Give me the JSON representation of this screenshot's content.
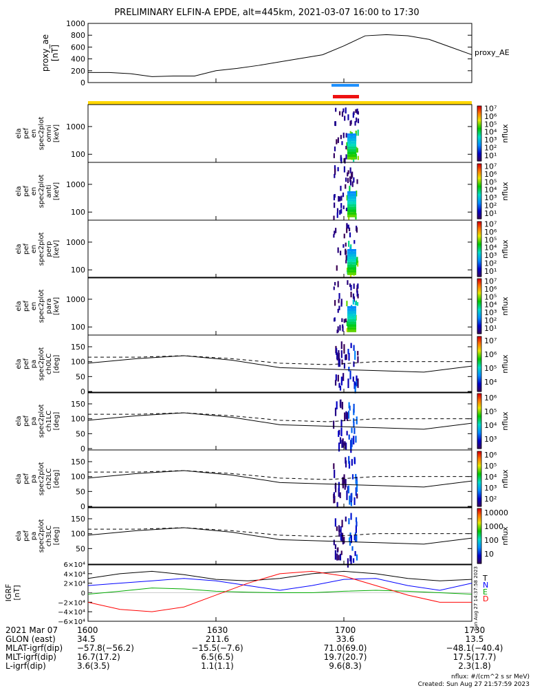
{
  "title": "PRELIMINARY ELFIN-A EPDE, alt=445km, 2021-03-07 16:00 to 17:30",
  "chart_data": [
    {
      "type": "line",
      "panel": "proxy_ae",
      "ylabel": [
        "proxy_ae",
        "[nT]"
      ],
      "series_label": "proxy_AE",
      "ylim": [
        0,
        1000
      ],
      "yticks": [
        "1000",
        "800",
        "600",
        "400",
        "200",
        "0"
      ],
      "series": [
        {
          "name": "proxy_AE",
          "x": [
            0,
            5,
            10,
            15,
            20,
            25,
            30,
            35,
            40,
            45,
            50,
            55,
            60,
            65,
            70,
            75,
            80,
            85,
            90
          ],
          "values": [
            170,
            170,
            150,
            100,
            110,
            110,
            200,
            240,
            290,
            350,
            410,
            470,
            620,
            790,
            810,
            790,
            730,
            600,
            470
          ]
        }
      ]
    },
    {
      "type": "heatmap",
      "panel": "ela_pef_en_spec2plot_omni",
      "ylabel": [
        "ela",
        "pef",
        "en",
        "spec2plot",
        "omni",
        "[keV]"
      ],
      "yscale": "log",
      "yticks": [
        "1000",
        "100"
      ],
      "zlabel": "nflux",
      "zticks": [
        "10⁷",
        "10⁶",
        "10⁵",
        "10⁴",
        "10³",
        "10²",
        "10¹"
      ],
      "x_active_minutes": [
        58,
        62
      ]
    },
    {
      "type": "heatmap",
      "panel": "ela_pef_en_spec2plot_anti",
      "ylabel": [
        "ela",
        "pef",
        "en",
        "spec2plot",
        "anti",
        "[keV]"
      ],
      "yscale": "log",
      "yticks": [
        "1000",
        "100"
      ],
      "zlabel": "nflux",
      "zticks": [
        "10⁷",
        "10⁶",
        "10⁵",
        "10⁴",
        "10³",
        "10²",
        "10¹"
      ],
      "x_active_minutes": [
        59,
        62
      ]
    },
    {
      "type": "heatmap",
      "panel": "ela_pef_en_spec2plot_perp",
      "ylabel": [
        "ela",
        "pef",
        "en",
        "spec2plot",
        "perp",
        "[keV]"
      ],
      "yscale": "log",
      "yticks": [
        "1000",
        "100"
      ],
      "zlabel": "nflux",
      "zticks": [
        "10⁷",
        "10⁶",
        "10⁵",
        "10⁴",
        "10³",
        "10²",
        "10¹"
      ],
      "x_active_minutes": [
        58,
        62
      ]
    },
    {
      "type": "heatmap",
      "panel": "ela_pef_en_spec2plot_para",
      "ylabel": [
        "ela",
        "pef",
        "en",
        "spec2plot",
        "para",
        "[keV]"
      ],
      "yscale": "log",
      "yticks": [
        "1000",
        "100"
      ],
      "zlabel": "nflux",
      "zticks": [
        "10⁷",
        "10⁶",
        "10⁵",
        "10⁴",
        "10³",
        "10²",
        "10¹"
      ],
      "x_active_minutes": [
        59,
        62
      ]
    },
    {
      "type": "heatmap",
      "panel": "ela_pef_pa_spec2plot_ch0LC",
      "ylabel": [
        "ela",
        "pef",
        "pa",
        "spec2plot",
        "ch0LC",
        "[deg]"
      ],
      "yticks": [
        "150",
        "100",
        "50",
        "0"
      ],
      "ylim": [
        0,
        180
      ],
      "zlabel": "nflux",
      "zticks": [
        "10⁷",
        "10⁶",
        "10⁵",
        "10⁴"
      ],
      "loss_cone_solid": [
        95,
        110,
        120,
        105,
        80,
        75,
        70,
        65,
        85
      ],
      "loss_cone_dashed": [
        115,
        115,
        120,
        110,
        95,
        90,
        100,
        100,
        100
      ]
    },
    {
      "type": "heatmap",
      "panel": "ela_pef_pa_spec2plot_ch1LC",
      "ylabel": [
        "ela",
        "pef",
        "pa",
        "spec2plot",
        "ch1LC",
        "[deg]"
      ],
      "yticks": [
        "150",
        "100",
        "50",
        "0"
      ],
      "ylim": [
        0,
        180
      ],
      "zlabel": "nflux",
      "zticks": [
        "10⁶",
        "10⁵",
        "10⁴",
        "10³"
      ],
      "loss_cone_solid": [
        95,
        110,
        120,
        105,
        80,
        75,
        70,
        65,
        85
      ],
      "loss_cone_dashed": [
        115,
        115,
        120,
        110,
        95,
        90,
        100,
        100,
        100
      ]
    },
    {
      "type": "heatmap",
      "panel": "ela_pef_pa_spec2plot_ch2LC",
      "ylabel": [
        "ela",
        "pef",
        "pa",
        "spec2plot",
        "ch2LC",
        "[deg]"
      ],
      "yticks": [
        "150",
        "100",
        "50",
        "0"
      ],
      "ylim": [
        0,
        180
      ],
      "zlabel": "nflux",
      "zticks": [
        "10⁶",
        "10⁵",
        "10⁴",
        "10³",
        "10²"
      ],
      "loss_cone_solid": [
        95,
        110,
        120,
        105,
        80,
        75,
        70,
        65,
        85
      ],
      "loss_cone_dashed": [
        115,
        115,
        120,
        110,
        95,
        90,
        100,
        100,
        100
      ]
    },
    {
      "type": "heatmap",
      "panel": "ela_pef_pa_spec2plot_ch3LC",
      "ylabel": [
        "ela",
        "pef",
        "pa",
        "spec2plot",
        "ch3LC",
        "[deg]"
      ],
      "yticks": [
        "150",
        "100",
        "50"
      ],
      "ylim": [
        0,
        180
      ],
      "zlabel": "nflux",
      "zticks": [
        "10000",
        "1000",
        "100",
        "10"
      ],
      "loss_cone_solid": [
        95,
        110,
        120,
        105,
        80,
        75,
        70,
        65,
        85
      ],
      "loss_cone_dashed": [
        115,
        115,
        120,
        110,
        95,
        90,
        100,
        100,
        100
      ]
    },
    {
      "type": "line",
      "panel": "IGRF",
      "ylabel": [
        "IGRF",
        "[nT]"
      ],
      "ylim": [
        -60000,
        60000
      ],
      "yticks": [
        "6×10⁴",
        "4×10⁴",
        "2×10⁴",
        "0",
        "−2×10⁴",
        "−4×10⁴",
        "−6×10⁴"
      ],
      "legend": [
        "T",
        "N",
        "E",
        "D"
      ],
      "series": [
        {
          "name": "T",
          "color": "#000000",
          "values": [
            30000,
            40000,
            45000,
            38000,
            28000,
            25000,
            30000,
            40000,
            45000,
            40000,
            30000,
            25000,
            28000
          ]
        },
        {
          "name": "N",
          "color": "#0000ff",
          "values": [
            15000,
            20000,
            25000,
            30000,
            25000,
            15000,
            5000,
            15000,
            28000,
            30000,
            15000,
            5000,
            20000
          ]
        },
        {
          "name": "E",
          "color": "#00aa00",
          "values": [
            -3000,
            3000,
            10000,
            8000,
            3000,
            1000,
            0,
            0,
            3000,
            5000,
            3000,
            0,
            -3000
          ]
        },
        {
          "name": "D",
          "color": "#ff0000",
          "values": [
            -20000,
            -35000,
            -40000,
            -30000,
            -5000,
            20000,
            40000,
            45000,
            35000,
            15000,
            -5000,
            -20000,
            -20000
          ]
        }
      ]
    }
  ],
  "xaxis": {
    "rows": [
      {
        "label": "2021 Mar 07",
        "values": [
          "1600",
          "1630",
          "1700",
          "1730"
        ]
      },
      {
        "label": "GLON (east)",
        "values": [
          "34.5",
          "211.6",
          "33.6",
          "13.5"
        ]
      },
      {
        "label": "MLAT-igrf(dip)",
        "values": [
          "−57.8(−56.2)",
          "−15.5(−7.6)",
          "71.0(69.0)",
          "−48.1(−40.4)"
        ]
      },
      {
        "label": "MLT-igrf(dip)",
        "values": [
          "16.7(17.2)",
          "6.5(6.5)",
          "19.7(20.7)",
          "17.5(17.7)"
        ]
      },
      {
        "label": "L-igrf(dip)",
        "values": [
          "3.6(3.5)",
          "1.1(1.1)",
          "9.6(8.3)",
          "2.3(1.8)"
        ]
      }
    ]
  },
  "footer": {
    "units": "nflux: #/(cm^2 s sr MeV)",
    "created": "Created: Sun Aug 27 21:57:59 2023",
    "vertical_stamp": "Sun Aug 27 14:37:58 2023"
  }
}
